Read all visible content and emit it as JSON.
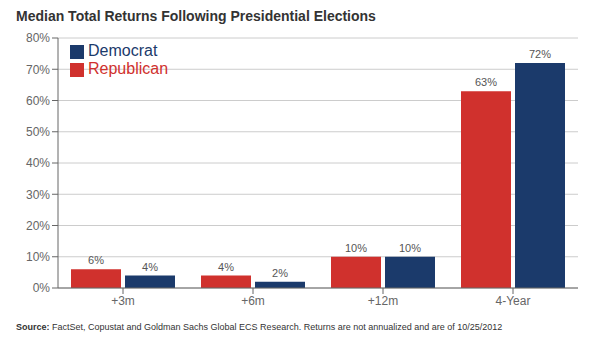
{
  "chart_data": {
    "type": "bar",
    "title": "Median Total Returns Following Presidential Elections",
    "categories": [
      "+3m",
      "+6m",
      "+12m",
      "4-Year"
    ],
    "series": [
      {
        "name": "Republican",
        "color": "#D0312D",
        "values": [
          6,
          4,
          10,
          63
        ],
        "value_labels": [
          "6%",
          "4%",
          "10%",
          "63%"
        ]
      },
      {
        "name": "Democrat",
        "color": "#1B3A6B",
        "values": [
          4,
          2,
          10,
          72
        ],
        "value_labels": [
          "4%",
          "2%",
          "10%",
          "72%"
        ]
      }
    ],
    "ylim": [
      0,
      80
    ],
    "yticks": [
      {
        "value": 0,
        "label": "0%"
      },
      {
        "value": 10,
        "label": "10%"
      },
      {
        "value": 20,
        "label": "20%"
      },
      {
        "value": 30,
        "label": "30%"
      },
      {
        "value": 40,
        "label": "40%"
      },
      {
        "value": 50,
        "label": "50%"
      },
      {
        "value": 60,
        "label": "60%"
      },
      {
        "value": 70,
        "label": "70%"
      },
      {
        "value": 80,
        "label": "80%"
      }
    ],
    "grid": true,
    "legend": "upper left",
    "data_labels": true,
    "annotations": [
      "Source:",
      " FactSet, Copustat and Goldman Sachs Global ECS Research. Returns are not annualized and are of 10/25/2012"
    ]
  }
}
